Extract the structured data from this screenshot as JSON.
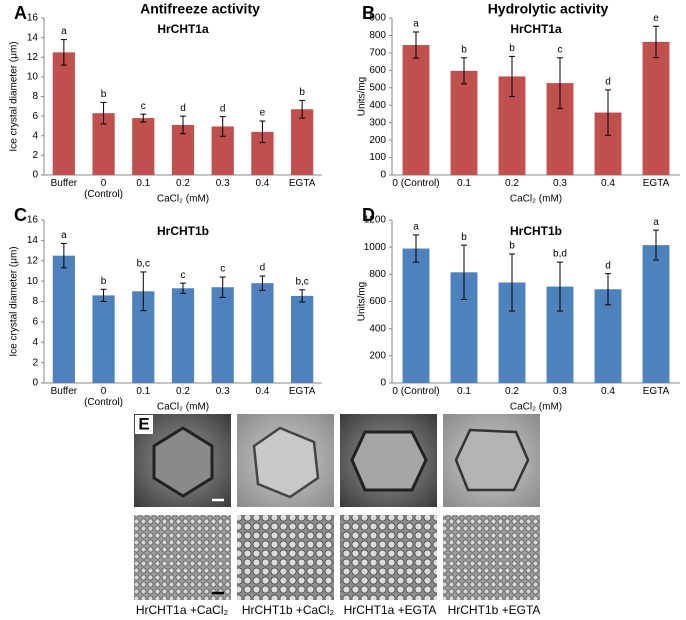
{
  "column_titles": [
    "Antifreeze activity",
    "Hydrolytic activity"
  ],
  "chart_data": [
    {
      "type": "bar",
      "panel": "A",
      "title": "HrCHT1a",
      "ylabel": "Ice crystal diameter (μm)",
      "xlabel": "CaCl₂ (mM)",
      "categories": [
        "Buffer",
        "0 (Control)",
        "0.1",
        "0.2",
        "0.3",
        "0.4",
        "EGTA"
      ],
      "values": [
        12.5,
        6.3,
        5.8,
        5.1,
        4.95,
        4.4,
        6.7
      ],
      "errors": [
        1.3,
        1.1,
        0.4,
        0.9,
        1.0,
        1.1,
        0.9
      ],
      "significance": [
        "a",
        "b",
        "c",
        "d",
        "d",
        "e",
        "b"
      ],
      "color": "#c0504d",
      "ylim": [
        0,
        16
      ],
      "yticks": [
        0,
        2,
        4,
        6,
        8,
        10,
        12,
        14,
        16
      ]
    },
    {
      "type": "bar",
      "panel": "B",
      "title": "HrCHT1a",
      "ylabel": "Units/mg",
      "xlabel": "CaCl₂ (mM)",
      "categories": [
        "0 (Control)",
        "0.1",
        "0.2",
        "0.3",
        "0.4",
        "EGTA"
      ],
      "values": [
        745,
        597,
        565,
        527,
        358,
        763
      ],
      "errors": [
        75,
        75,
        115,
        145,
        130,
        90
      ],
      "significance": [
        "a",
        "b",
        "b",
        "c",
        "d",
        "e"
      ],
      "color": "#c0504d",
      "ylim": [
        0,
        900
      ],
      "yticks": [
        0,
        100,
        200,
        300,
        400,
        500,
        600,
        700,
        800,
        900
      ]
    },
    {
      "type": "bar",
      "panel": "C",
      "title": "HrCHT1b",
      "ylabel": "Ice crystal diameter (μm)",
      "xlabel": "CaCl₂ (mM)",
      "categories": [
        "Buffer",
        "0 (Control)",
        "0.1",
        "0.2",
        "0.3",
        "0.4",
        "EGTA"
      ],
      "values": [
        12.5,
        8.6,
        9.0,
        9.3,
        9.4,
        9.8,
        8.55
      ],
      "errors": [
        1.2,
        0.6,
        1.9,
        0.5,
        1.0,
        0.7,
        0.6
      ],
      "significance": [
        "a",
        "b",
        "b,c",
        "c",
        "c",
        "d",
        "b,c"
      ],
      "color": "#4f81bd",
      "ylim": [
        0,
        16
      ],
      "yticks": [
        0,
        2,
        4,
        6,
        8,
        10,
        12,
        14,
        16
      ]
    },
    {
      "type": "bar",
      "panel": "D",
      "title": "HrCHT1b",
      "ylabel": "Units/mg",
      "xlabel": "CaCl₂ (mM)",
      "categories": [
        "0 (Control)",
        "0.1",
        "0.2",
        "0.3",
        "0.4",
        "EGTA"
      ],
      "values": [
        990,
        815,
        740,
        710,
        690,
        1015
      ],
      "errors": [
        100,
        200,
        210,
        180,
        115,
        110
      ],
      "significance": [
        "a",
        "b",
        "b",
        "b,d",
        "d",
        "a"
      ],
      "color": "#4f81bd",
      "ylim": [
        0,
        1200
      ],
      "yticks": [
        0,
        200,
        400,
        600,
        800,
        1000,
        1200
      ]
    }
  ],
  "panel_e": {
    "label": "E",
    "captions": [
      "HrCHT1a +CaCl₂",
      "HrCHT1b +CaCl₂",
      "HrCHT1a +EGTA",
      "HrCHT1b +EGTA"
    ]
  }
}
